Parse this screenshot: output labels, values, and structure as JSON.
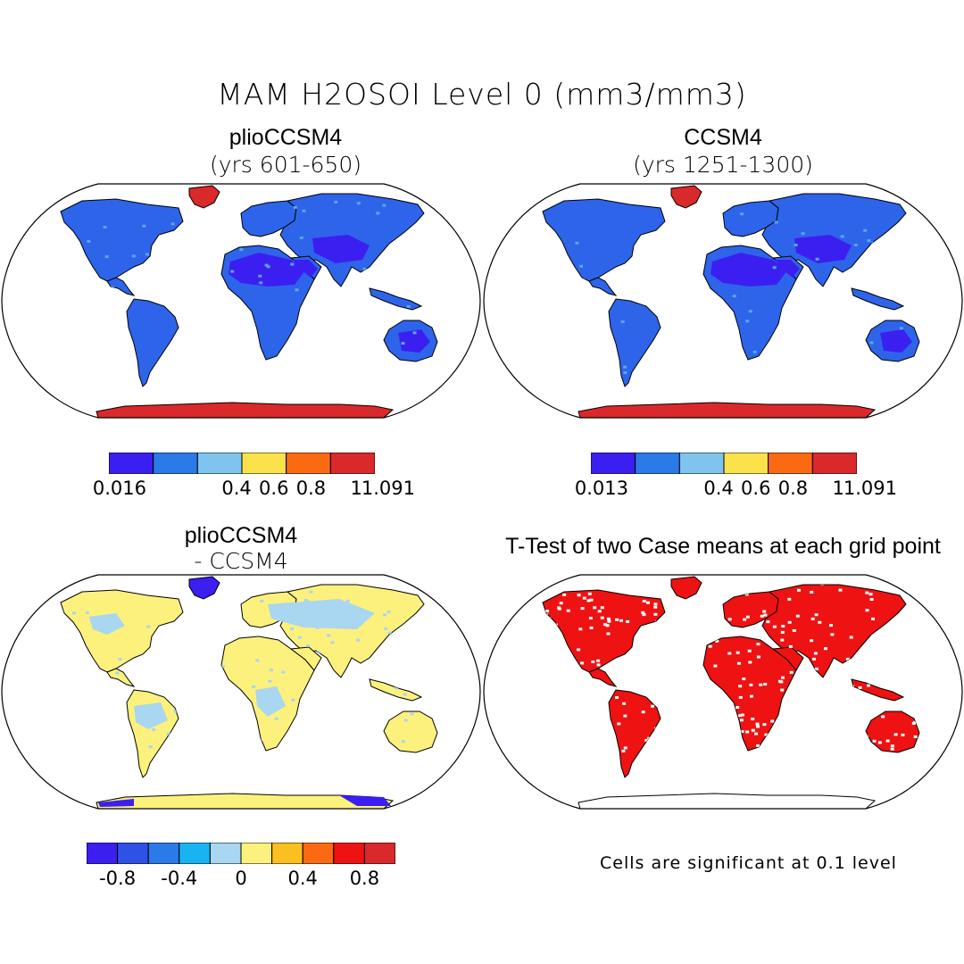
{
  "figure": {
    "title": "MAM H2OSOI Level 0 (mm3/mm3)"
  },
  "panels": [
    {
      "id": "plio",
      "title": "plioCCSM4",
      "subtitle": "(yrs 601-650)",
      "palette": [
        "#3b1ff0",
        "#2a7ae8",
        "#7fc4ef",
        "#fbe24a",
        "#fb6a12",
        "#d9292b"
      ],
      "land_color": "#2e64ea",
      "desert_color": "#3b1ff0",
      "greenland_color": "#d9292b",
      "antarctica_color": "#d9292b",
      "colorbar_labels": [
        "0.016",
        "0.4",
        "0.6",
        "0.8",
        "1",
        "1.091"
      ]
    },
    {
      "id": "ccsm4",
      "title": "CCSM4",
      "subtitle": "(yrs 1251-1300)",
      "palette": [
        "#3b1ff0",
        "#2a7ae8",
        "#7fc4ef",
        "#fbe24a",
        "#fb6a12",
        "#d9292b"
      ],
      "land_color": "#2e64ea",
      "desert_color": "#3b1ff0",
      "greenland_color": "#d9292b",
      "antarctica_color": "#d9292b",
      "colorbar_labels": [
        "0.013",
        "0.4",
        "0.6",
        "0.8",
        "1",
        "1.091"
      ]
    },
    {
      "id": "diff",
      "title": "plioCCSM4",
      "subtitle": "- CCSM4",
      "palette": [
        "#3b1ff0",
        "#2e52e6",
        "#2a7ae8",
        "#19b3f2",
        "#a9d6f0",
        "#fdf17e",
        "#fbc020",
        "#fb6a12",
        "#ee1212",
        "#d9292b"
      ],
      "land_color": "#fdf17e",
      "patch_color": "#a9d6f0",
      "greenland_color": "#3b1ff0",
      "antarctica_color": "#fdf17e",
      "colorbar_labels": [
        "-0.8",
        "-0.4",
        "0",
        "0.4",
        "0.8"
      ]
    },
    {
      "id": "ttest",
      "title": "T-Test of two Case means at each grid point",
      "land_color": "#ee1212",
      "note": "Cells are significant at 0.1 level"
    }
  ]
}
